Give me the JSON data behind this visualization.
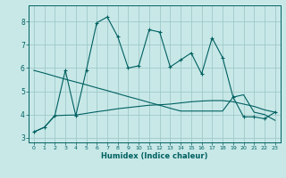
{
  "xlabel": "Humidex (Indice chaleur)",
  "bg_color": "#c8e8e8",
  "line_color": "#006060",
  "grid_color": "#a0c8c8",
  "xlim": [
    -0.5,
    23.5
  ],
  "ylim": [
    2.8,
    8.7
  ],
  "xticks": [
    0,
    1,
    2,
    3,
    4,
    5,
    6,
    7,
    8,
    9,
    10,
    11,
    12,
    13,
    14,
    15,
    16,
    17,
    18,
    19,
    20,
    21,
    22,
    23
  ],
  "yticks": [
    3,
    4,
    5,
    6,
    7,
    8
  ],
  "line1_x": [
    0,
    1,
    2,
    3,
    4,
    5,
    6,
    7,
    8,
    9,
    10,
    11,
    12,
    13,
    14,
    15,
    16,
    17,
    18,
    19,
    20,
    21,
    22,
    23
  ],
  "line1_y": [
    3.25,
    3.45,
    3.95,
    5.9,
    3.95,
    5.9,
    7.95,
    8.2,
    7.35,
    6.0,
    6.1,
    7.65,
    7.55,
    6.05,
    6.35,
    6.65,
    5.75,
    7.3,
    6.45,
    4.75,
    3.9,
    3.9,
    3.82,
    4.1
  ],
  "line2_x": [
    0,
    1,
    2,
    3,
    4,
    5,
    6,
    7,
    8,
    9,
    10,
    11,
    12,
    13,
    14,
    15,
    16,
    17,
    18,
    19,
    20,
    21,
    22,
    23
  ],
  "line2_y": [
    5.9,
    5.78,
    5.65,
    5.52,
    5.4,
    5.28,
    5.15,
    5.03,
    4.9,
    4.77,
    4.65,
    4.52,
    4.4,
    4.27,
    4.15,
    4.15,
    4.15,
    4.15,
    4.15,
    4.75,
    4.85,
    4.1,
    4.0,
    3.75
  ],
  "line3_x": [
    0,
    1,
    2,
    3,
    4,
    5,
    6,
    7,
    8,
    9,
    10,
    11,
    12,
    13,
    14,
    15,
    16,
    17,
    18,
    19,
    20,
    21,
    22,
    23
  ],
  "line3_y": [
    3.25,
    3.45,
    3.95,
    3.97,
    3.98,
    4.05,
    4.12,
    4.18,
    4.25,
    4.3,
    4.35,
    4.4,
    4.42,
    4.45,
    4.5,
    4.55,
    4.58,
    4.6,
    4.6,
    4.55,
    4.45,
    4.35,
    4.2,
    4.1
  ]
}
